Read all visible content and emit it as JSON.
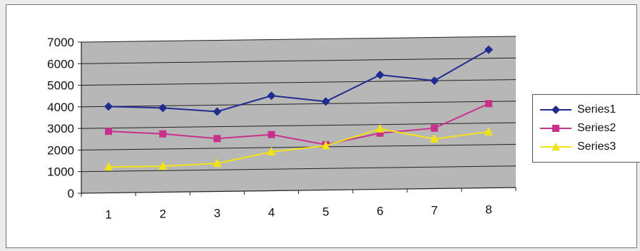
{
  "chart_data": {
    "type": "line",
    "categories": [
      "1",
      "2",
      "3",
      "4",
      "5",
      "6",
      "7",
      "8"
    ],
    "ylim": [
      0,
      7000
    ],
    "yticks": [
      "0",
      "1000",
      "2000",
      "3000",
      "4000",
      "5000",
      "6000",
      "7000"
    ],
    "grid": true,
    "legend_position": "right",
    "plot_background": "#b7b7b7",
    "series": [
      {
        "name": "Series1",
        "values": [
          4000,
          3900,
          3700,
          4400,
          4100,
          5300,
          5000,
          6400
        ],
        "color": "#1f2b8f",
        "marker": "diamond"
      },
      {
        "name": "Series2",
        "values": [
          2850,
          2700,
          2450,
          2600,
          2100,
          2600,
          2800,
          3900
        ],
        "color": "#c8308c",
        "marker": "square"
      },
      {
        "name": "Series3",
        "values": [
          1200,
          1200,
          1300,
          1800,
          2050,
          2800,
          2300,
          2600
        ],
        "color": "#f2e318",
        "marker": "triangle"
      }
    ]
  }
}
